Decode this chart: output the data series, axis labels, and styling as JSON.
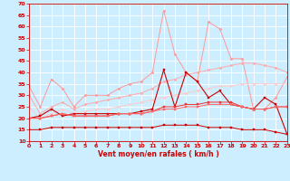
{
  "x": [
    0,
    1,
    2,
    3,
    4,
    5,
    6,
    7,
    8,
    9,
    10,
    11,
    12,
    13,
    14,
    15,
    16,
    17,
    18,
    19,
    20,
    21,
    22,
    23
  ],
  "series": [
    {
      "name": "rafales_max",
      "color": "#ff9999",
      "linewidth": 0.7,
      "marker": "D",
      "markersize": 1.5,
      "values": [
        34,
        25,
        37,
        33,
        25,
        30,
        30,
        30,
        33,
        35,
        36,
        40,
        67,
        48,
        40,
        36,
        62,
        59,
        46,
        46,
        24,
        24,
        29,
        38
      ]
    },
    {
      "name": "rafales_mean_high",
      "color": "#ffaaaa",
      "linewidth": 0.7,
      "marker": "D",
      "markersize": 1.5,
      "values": [
        30,
        22,
        25,
        27,
        24,
        26,
        27,
        28,
        29,
        30,
        31,
        33,
        36,
        37,
        39,
        40,
        41,
        42,
        43,
        44,
        44,
        43,
        42,
        40
      ]
    },
    {
      "name": "rafales_mean_low",
      "color": "#ffcccc",
      "linewidth": 0.7,
      "marker": "D",
      "markersize": 1.5,
      "values": [
        25,
        20,
        22,
        24,
        22,
        23,
        24,
        24,
        25,
        26,
        27,
        28,
        29,
        30,
        31,
        32,
        33,
        34,
        34,
        35,
        35,
        35,
        35,
        35
      ]
    },
    {
      "name": "vent_max",
      "color": "#cc0000",
      "linewidth": 0.8,
      "marker": "s",
      "markersize": 1.5,
      "values": [
        20,
        21,
        24,
        21,
        22,
        22,
        22,
        22,
        22,
        22,
        23,
        24,
        41,
        25,
        40,
        36,
        29,
        32,
        26,
        25,
        24,
        29,
        26,
        13
      ]
    },
    {
      "name": "vent_mean_high",
      "color": "#ee3333",
      "linewidth": 0.7,
      "marker": "s",
      "markersize": 1.5,
      "values": [
        20,
        20,
        21,
        22,
        21,
        21,
        21,
        21,
        22,
        22,
        22,
        23,
        25,
        25,
        26,
        26,
        27,
        27,
        27,
        25,
        24,
        24,
        25,
        25
      ]
    },
    {
      "name": "vent_mean_low",
      "color": "#ff6666",
      "linewidth": 0.7,
      "marker": "s",
      "markersize": 1.5,
      "values": [
        20,
        20,
        21,
        22,
        21,
        21,
        21,
        21,
        22,
        22,
        22,
        23,
        24,
        24,
        25,
        25,
        26,
        26,
        26,
        25,
        24,
        24,
        25,
        25
      ]
    },
    {
      "name": "vent_min",
      "color": "#cc0000",
      "linewidth": 0.7,
      "marker": "s",
      "markersize": 1.5,
      "values": [
        15,
        15,
        16,
        16,
        16,
        16,
        16,
        16,
        16,
        16,
        16,
        16,
        17,
        17,
        17,
        17,
        16,
        16,
        16,
        15,
        15,
        15,
        14,
        13
      ]
    }
  ],
  "xlabel": "Vent moyen/en rafales ( km/h )",
  "xlim": [
    0,
    23
  ],
  "ylim": [
    10,
    70
  ],
  "yticks": [
    10,
    15,
    20,
    25,
    30,
    35,
    40,
    45,
    50,
    55,
    60,
    65,
    70
  ],
  "xticks": [
    0,
    1,
    2,
    3,
    4,
    5,
    6,
    7,
    8,
    9,
    10,
    11,
    12,
    13,
    14,
    15,
    16,
    17,
    18,
    19,
    20,
    21,
    22,
    23
  ],
  "background_color": "#cceeff",
  "grid_color": "#ffffff",
  "tick_color": "#cc0000",
  "label_color": "#cc0000"
}
